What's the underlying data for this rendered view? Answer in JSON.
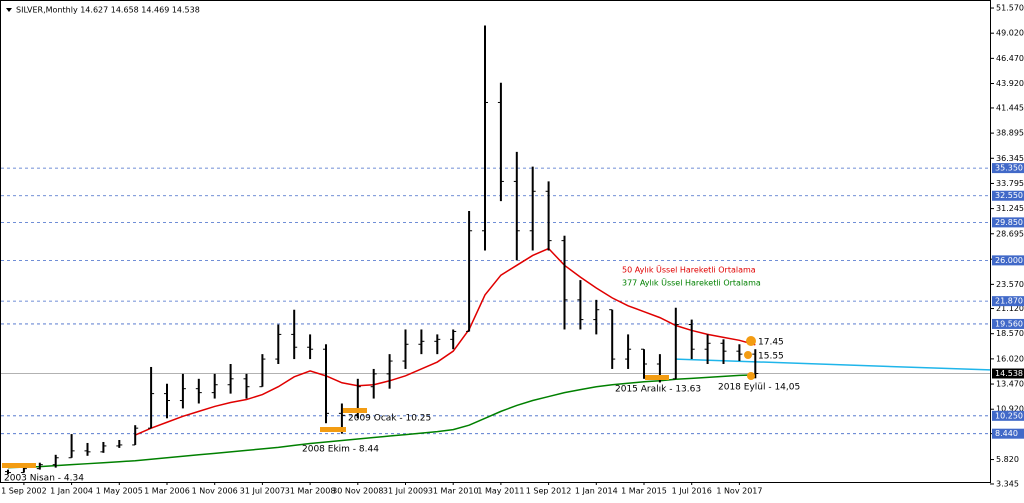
{
  "chart_data": {
    "type": "ohlc",
    "header": "SILVER,Monthly  14.627 14.658 14.469 14.538",
    "categories": [
      null,
      "1 Sep 2002",
      null,
      null,
      "1 Jan 2004",
      null,
      null,
      "1 May 2005",
      null,
      null,
      "1 Mar 2006",
      null,
      null,
      "1 Nov 2006",
      null,
      null,
      "31 Jul 2007",
      null,
      null,
      "31 Mar 2008",
      null,
      null,
      "30 Nov 2008",
      null,
      null,
      "31 Jul 2009",
      null,
      null,
      "31 Mar 2010",
      null,
      null,
      "1 May 2011",
      null,
      null,
      "1 Sep 2012",
      null,
      null,
      "1 Jan 2014",
      null,
      null,
      "1 Mar 2015",
      null,
      null,
      "1 Jul 2016",
      null,
      null,
      "1 Nov 2017",
      null
    ],
    "open": [
      4.6,
      4.5,
      4.9,
      5.3,
      6.0,
      6.7,
      6.6,
      7.2,
      7.3,
      9.0,
      12.5,
      11.8,
      13.0,
      12.6,
      13.4,
      14.0,
      13.2,
      16.0,
      18.5,
      17.2,
      17.0,
      10.5,
      10.3,
      13.2,
      14.5,
      15.8,
      17.5,
      17.8,
      18.0,
      18.8,
      29.0,
      42.0,
      34.0,
      29.0,
      33.0,
      28.0,
      22.0,
      20.0,
      21.0,
      16.0,
      17.0,
      15.5,
      14.0,
      19.5,
      17.0,
      17.6,
      16.8,
      16.5
    ],
    "high": [
      4.8,
      5.0,
      5.5,
      6.3,
      8.4,
      7.5,
      7.6,
      7.8,
      9.3,
      15.2,
      13.5,
      14.5,
      14.0,
      14.5,
      15.5,
      14.5,
      16.5,
      19.5,
      21.0,
      18.5,
      17.5,
      11.5,
      14.0,
      15.0,
      16.5,
      19.0,
      19.0,
      18.5,
      19.0,
      31.0,
      49.8,
      44.0,
      37.0,
      35.5,
      34.0,
      28.5,
      24.0,
      22.0,
      21.0,
      18.5,
      17.0,
      16.5,
      21.2,
      20.0,
      18.5,
      18.0,
      17.5,
      17.0
    ],
    "low": [
      4.34,
      4.5,
      4.8,
      5.0,
      6.0,
      6.2,
      6.5,
      7.0,
      7.3,
      9.0,
      10.0,
      11.0,
      11.5,
      12.0,
      12.5,
      12.0,
      13.2,
      15.5,
      16.0,
      16.0,
      9.5,
      8.44,
      10.0,
      12.0,
      13.0,
      15.0,
      16.5,
      16.5,
      17.0,
      18.8,
      27.0,
      32.0,
      26.0,
      27.0,
      27.0,
      19.0,
      19.0,
      18.5,
      15.0,
      15.0,
      14.0,
      13.63,
      14.0,
      16.0,
      15.5,
      15.5,
      15.8,
      14.05
    ],
    "close": [
      4.5,
      4.9,
      5.3,
      6.0,
      6.7,
      6.6,
      7.2,
      7.3,
      9.0,
      12.5,
      11.8,
      13.0,
      12.6,
      13.4,
      14.0,
      13.2,
      16.0,
      18.5,
      17.2,
      17.0,
      10.5,
      10.3,
      13.2,
      14.5,
      15.8,
      17.5,
      17.8,
      18.0,
      18.8,
      29.0,
      42.0,
      34.0,
      29.0,
      33.0,
      28.0,
      22.0,
      20.0,
      21.0,
      16.0,
      17.0,
      15.5,
      14.0,
      19.5,
      17.0,
      17.6,
      16.8,
      16.5,
      14.538
    ],
    "bar_color": "#000000",
    "series": [
      {
        "name": "50 Aylık Üssel Hareketli Ortalama",
        "color": "#e00000",
        "values": [
          null,
          null,
          null,
          null,
          null,
          null,
          null,
          null,
          8.3,
          9.0,
          9.6,
          10.2,
          10.7,
          11.2,
          11.6,
          11.9,
          12.4,
          13.2,
          14.2,
          14.8,
          14.3,
          13.6,
          13.3,
          13.4,
          13.8,
          14.3,
          15.0,
          15.7,
          16.8,
          19.0,
          22.5,
          24.5,
          25.5,
          26.5,
          27.2,
          25.5,
          24.3,
          23.2,
          22.2,
          21.4,
          20.8,
          20.2,
          19.4,
          18.9,
          18.5,
          18.2,
          17.9,
          17.45
        ]
      },
      {
        "name": "377 Aylık Üssel Hareketli Ortalama",
        "color": "#008000",
        "values": [
          5.0,
          5.05,
          5.1,
          5.2,
          5.3,
          5.4,
          5.5,
          5.6,
          5.7,
          5.85,
          6.0,
          6.15,
          6.3,
          6.45,
          6.6,
          6.75,
          6.9,
          7.05,
          7.25,
          7.45,
          7.6,
          7.75,
          7.9,
          8.05,
          8.2,
          8.35,
          8.5,
          8.65,
          8.85,
          9.3,
          10.0,
          10.7,
          11.3,
          11.8,
          12.2,
          12.6,
          12.9,
          13.2,
          13.4,
          13.55,
          13.7,
          13.8,
          13.95,
          14.05,
          14.15,
          14.25,
          14.35,
          14.4
        ]
      }
    ],
    "trend_line": {
      "color": "#1fb5ea",
      "values": [
        16.0,
        14.9
      ]
    },
    "ylim": [
      2.43,
      52.18
    ],
    "yticks": [
      {
        "value": 51.57,
        "label": "51.570"
      },
      {
        "value": 49.02,
        "label": "49.020"
      },
      {
        "value": 46.47,
        "label": "46.470"
      },
      {
        "value": 43.92,
        "label": "43.920"
      },
      41.445,
      38.895,
      36.345,
      33.795,
      31.245,
      28.695,
      {
        "value": 26.12,
        "label": "26.120"
      },
      {
        "value": 23.57,
        "label": "23.570"
      },
      {
        "value": 21.12,
        "label": "21.120"
      },
      {
        "value": 18.57,
        "label": "18.570"
      },
      {
        "value": 16.02,
        "label": "16.020"
      },
      {
        "value": 13.47,
        "label": "13.470"
      },
      {
        "value": 10.92,
        "label": "10.920"
      },
      8.445,
      {
        "value": 5.82,
        "label": "5.820"
      },
      3.345
    ],
    "levels": [
      {
        "value": 35.35,
        "label": "35.350"
      },
      {
        "value": 32.55,
        "label": "32.550"
      },
      {
        "value": 29.85,
        "label": "29.850"
      },
      {
        "value": 26.0,
        "label": "26.000"
      },
      {
        "value": 21.87,
        "label": "21.870"
      },
      {
        "value": 19.56,
        "label": "19.560"
      },
      {
        "value": 10.25,
        "label": "10.250"
      },
      {
        "value": 8.44,
        "label": "8.440"
      }
    ],
    "level_color": "#4169c8",
    "current_price": 14.538,
    "annotations": [
      "2003 Nisan - 4.34",
      "2008 Ekim - 8.44",
      "2009 Ocak - 10.25",
      "2015 Aralık - 13.63",
      "2018 Eylül - 14,05",
      "17.45",
      "15.55"
    ]
  }
}
